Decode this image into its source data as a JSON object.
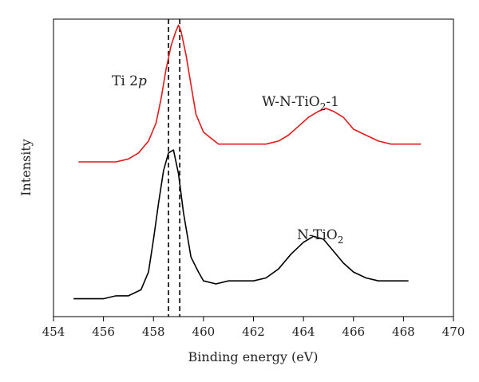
{
  "chart_data": {
    "type": "line",
    "xlabel": "Binding energy (eV)",
    "ylabel": "Intensity",
    "xlim": [
      454,
      470
    ],
    "xticks": [
      454,
      456,
      458,
      460,
      462,
      464,
      466,
      468,
      470
    ],
    "y_axis_values": false,
    "grid": false,
    "legend": "none",
    "reference_lines_x": [
      458.6,
      459.05
    ],
    "annotations": {
      "peak_label": {
        "main": "Ti 2",
        "italic": "p"
      },
      "upper_series_label": {
        "pre": "W-N-TiO",
        "sub": "2",
        "post": "-1"
      },
      "lower_series_label": {
        "pre": "N-TiO",
        "sub": "2"
      }
    },
    "series": [
      {
        "color": "#e41a1c",
        "x": [
          455.0,
          455.5,
          456.0,
          456.5,
          457.0,
          457.4,
          457.8,
          458.1,
          458.3,
          458.5,
          458.7,
          458.9,
          459.0,
          459.1,
          459.3,
          459.5,
          459.7,
          460.0,
          460.3,
          460.6,
          461.0,
          461.5,
          462.0,
          462.5,
          463.0,
          463.4,
          463.8,
          464.2,
          464.6,
          464.9,
          465.2,
          465.6,
          466.0,
          466.5,
          467.0,
          467.5,
          468.0,
          468.7
        ],
        "y": [
          0.52,
          0.52,
          0.52,
          0.52,
          0.53,
          0.55,
          0.59,
          0.65,
          0.73,
          0.83,
          0.91,
          0.96,
          0.98,
          0.96,
          0.88,
          0.78,
          0.68,
          0.62,
          0.6,
          0.58,
          0.58,
          0.58,
          0.58,
          0.58,
          0.59,
          0.61,
          0.64,
          0.67,
          0.69,
          0.7,
          0.69,
          0.67,
          0.63,
          0.61,
          0.59,
          0.58,
          0.58,
          0.58
        ]
      },
      {
        "color": "#000000",
        "x": [
          454.8,
          455.5,
          456.0,
          456.5,
          457.0,
          457.5,
          457.8,
          458.0,
          458.2,
          458.4,
          458.6,
          458.8,
          459.0,
          459.2,
          459.5,
          459.8,
          460.0,
          460.5,
          461.0,
          461.5,
          462.0,
          462.5,
          463.0,
          463.5,
          464.0,
          464.4,
          464.8,
          465.2,
          465.6,
          466.0,
          466.5,
          467.0,
          467.5,
          468.2
        ],
        "y": [
          0.06,
          0.06,
          0.06,
          0.07,
          0.07,
          0.09,
          0.15,
          0.26,
          0.38,
          0.49,
          0.55,
          0.56,
          0.48,
          0.35,
          0.2,
          0.15,
          0.12,
          0.11,
          0.12,
          0.12,
          0.12,
          0.13,
          0.16,
          0.21,
          0.25,
          0.27,
          0.26,
          0.22,
          0.18,
          0.15,
          0.13,
          0.12,
          0.12,
          0.12
        ]
      }
    ]
  }
}
